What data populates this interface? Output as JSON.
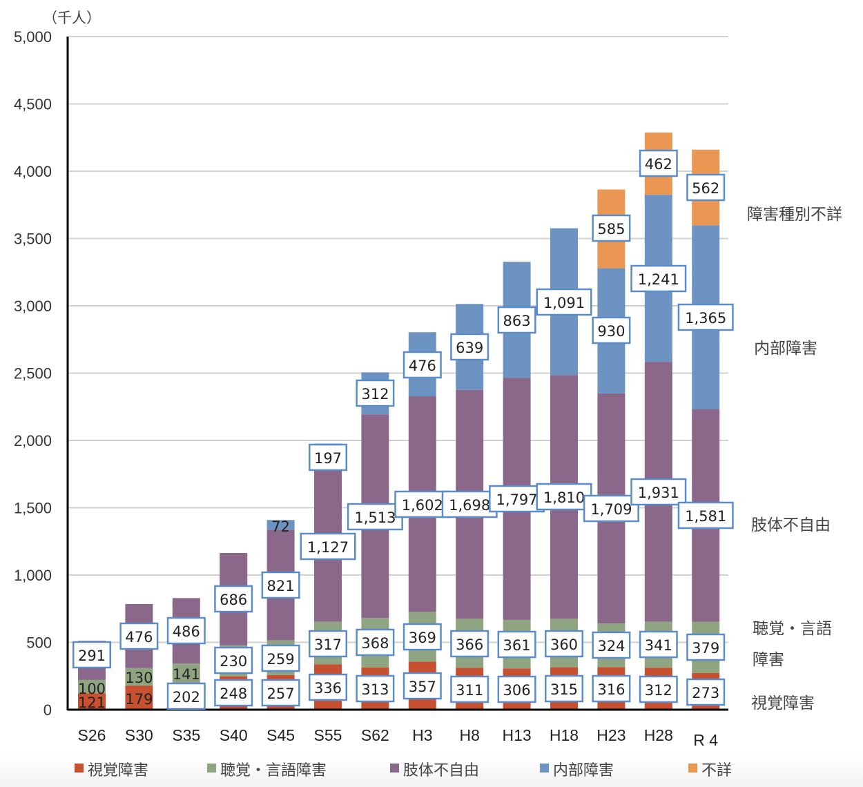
{
  "chart_data": {
    "type": "bar",
    "stacked": true,
    "unit_label": "（千人）",
    "ylim": [
      0,
      5000
    ],
    "yticks": [
      0,
      500,
      1000,
      1500,
      2000,
      2500,
      3000,
      3500,
      4000,
      4500,
      5000
    ],
    "ytick_labels": [
      "0",
      "500",
      "1,000",
      "1,500",
      "2,000",
      "2,500",
      "3,000",
      "3,500",
      "4,000",
      "4,500",
      "5,000"
    ],
    "grid": true,
    "categories": [
      "S26",
      "S30",
      "S35",
      "S40",
      "S45",
      "S55",
      "S62",
      "H3",
      "H8",
      "H13",
      "H18",
      "H23",
      "H28",
      "R 4"
    ],
    "series": [
      {
        "name": "視覚障害",
        "side_label": [
          "視覚障害"
        ],
        "color": "#C6502F",
        "values": [
          121,
          179,
          202,
          248,
          257,
          336,
          313,
          357,
          311,
          306,
          315,
          316,
          312,
          273
        ],
        "labels": [
          "121",
          "179",
          "202",
          "248",
          "257",
          "336",
          "313",
          "357",
          "311",
          "306",
          "315",
          "316",
          "312",
          "273"
        ]
      },
      {
        "name": "聴覚・言語障害",
        "side_label": [
          "聴覚・言語",
          "障害"
        ],
        "color": "#8FA480",
        "values": [
          100,
          130,
          141,
          230,
          259,
          317,
          368,
          369,
          366,
          361,
          360,
          324,
          341,
          379
        ],
        "labels": [
          "100",
          "130",
          "141",
          "230",
          "259",
          "317",
          "368",
          "369",
          "366",
          "361",
          "360",
          "324",
          "341",
          "379"
        ]
      },
      {
        "name": "肢体不自由",
        "side_label": [
          "肢体不自由"
        ],
        "color": "#8B6889",
        "values": [
          291,
          476,
          486,
          686,
          821,
          1127,
          1513,
          1602,
          1698,
          1797,
          1810,
          1709,
          1931,
          1581
        ],
        "labels": [
          "291",
          "476",
          "486",
          "686",
          "821",
          "1,127",
          "1,513",
          "1,602",
          "1,698",
          "1,797",
          "1,810",
          "1,709",
          "1,931",
          "1,581"
        ]
      },
      {
        "name": "内部障害",
        "side_label": [
          "内部障害"
        ],
        "color": "#6D93C2",
        "values": [
          null,
          null,
          null,
          null,
          72,
          197,
          312,
          476,
          639,
          863,
          1091,
          930,
          1241,
          1365
        ],
        "labels": [
          null,
          null,
          null,
          null,
          "72",
          "197",
          "312",
          "476",
          "639",
          "863",
          "1,091",
          "930",
          "1,241",
          "1,365"
        ]
      },
      {
        "name": "不詳",
        "side_label": [
          "障害種別不詳"
        ],
        "color": "#E99752",
        "values": [
          null,
          null,
          null,
          null,
          null,
          null,
          null,
          null,
          null,
          null,
          null,
          585,
          462,
          562
        ],
        "labels": [
          null,
          null,
          null,
          null,
          null,
          null,
          null,
          null,
          null,
          null,
          null,
          "585",
          "462",
          "562"
        ]
      }
    ],
    "legend": [
      "視覚障害",
      "聴覚・言語障害",
      "肢体不自由",
      "内部障害",
      "不詳"
    ],
    "legend_position": "bottom",
    "label_box_color": "#5B8CC7"
  }
}
